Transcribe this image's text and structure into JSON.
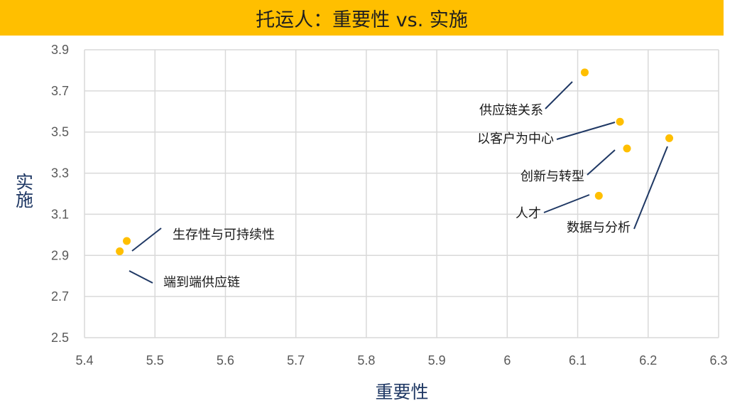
{
  "title": "托运人：重要性 vs. 实施",
  "chart_data": {
    "type": "scatter",
    "title": "托运人：重要性 vs. 实施",
    "xlabel": "重要性",
    "ylabel": "实施",
    "xlim": [
      5.4,
      6.3
    ],
    "ylim": [
      2.5,
      3.9
    ],
    "x_ticks": [
      "5.4",
      "5.5",
      "5.6",
      "5.7",
      "5.8",
      "5.9",
      "6",
      "6.1",
      "6.2",
      "6.3"
    ],
    "y_ticks": [
      "2.5",
      "2.7",
      "2.9",
      "3.1",
      "3.3",
      "3.5",
      "3.7",
      "3.9"
    ],
    "grid": true,
    "marker_color": "#ffbf00",
    "leader_line_color": "#1f3864",
    "points": [
      {
        "label": "供应链关系",
        "x": 6.11,
        "y": 3.79
      },
      {
        "label": "以客户为中心",
        "x": 6.16,
        "y": 3.55
      },
      {
        "label": "创新与转型",
        "x": 6.17,
        "y": 3.42
      },
      {
        "label": "数据与分析",
        "x": 6.23,
        "y": 3.47
      },
      {
        "label": "人才",
        "x": 6.13,
        "y": 3.19
      },
      {
        "label": "生存性与可持续性",
        "x": 5.46,
        "y": 2.97
      },
      {
        "label": "端到端供应链",
        "x": 5.45,
        "y": 2.92
      }
    ]
  }
}
